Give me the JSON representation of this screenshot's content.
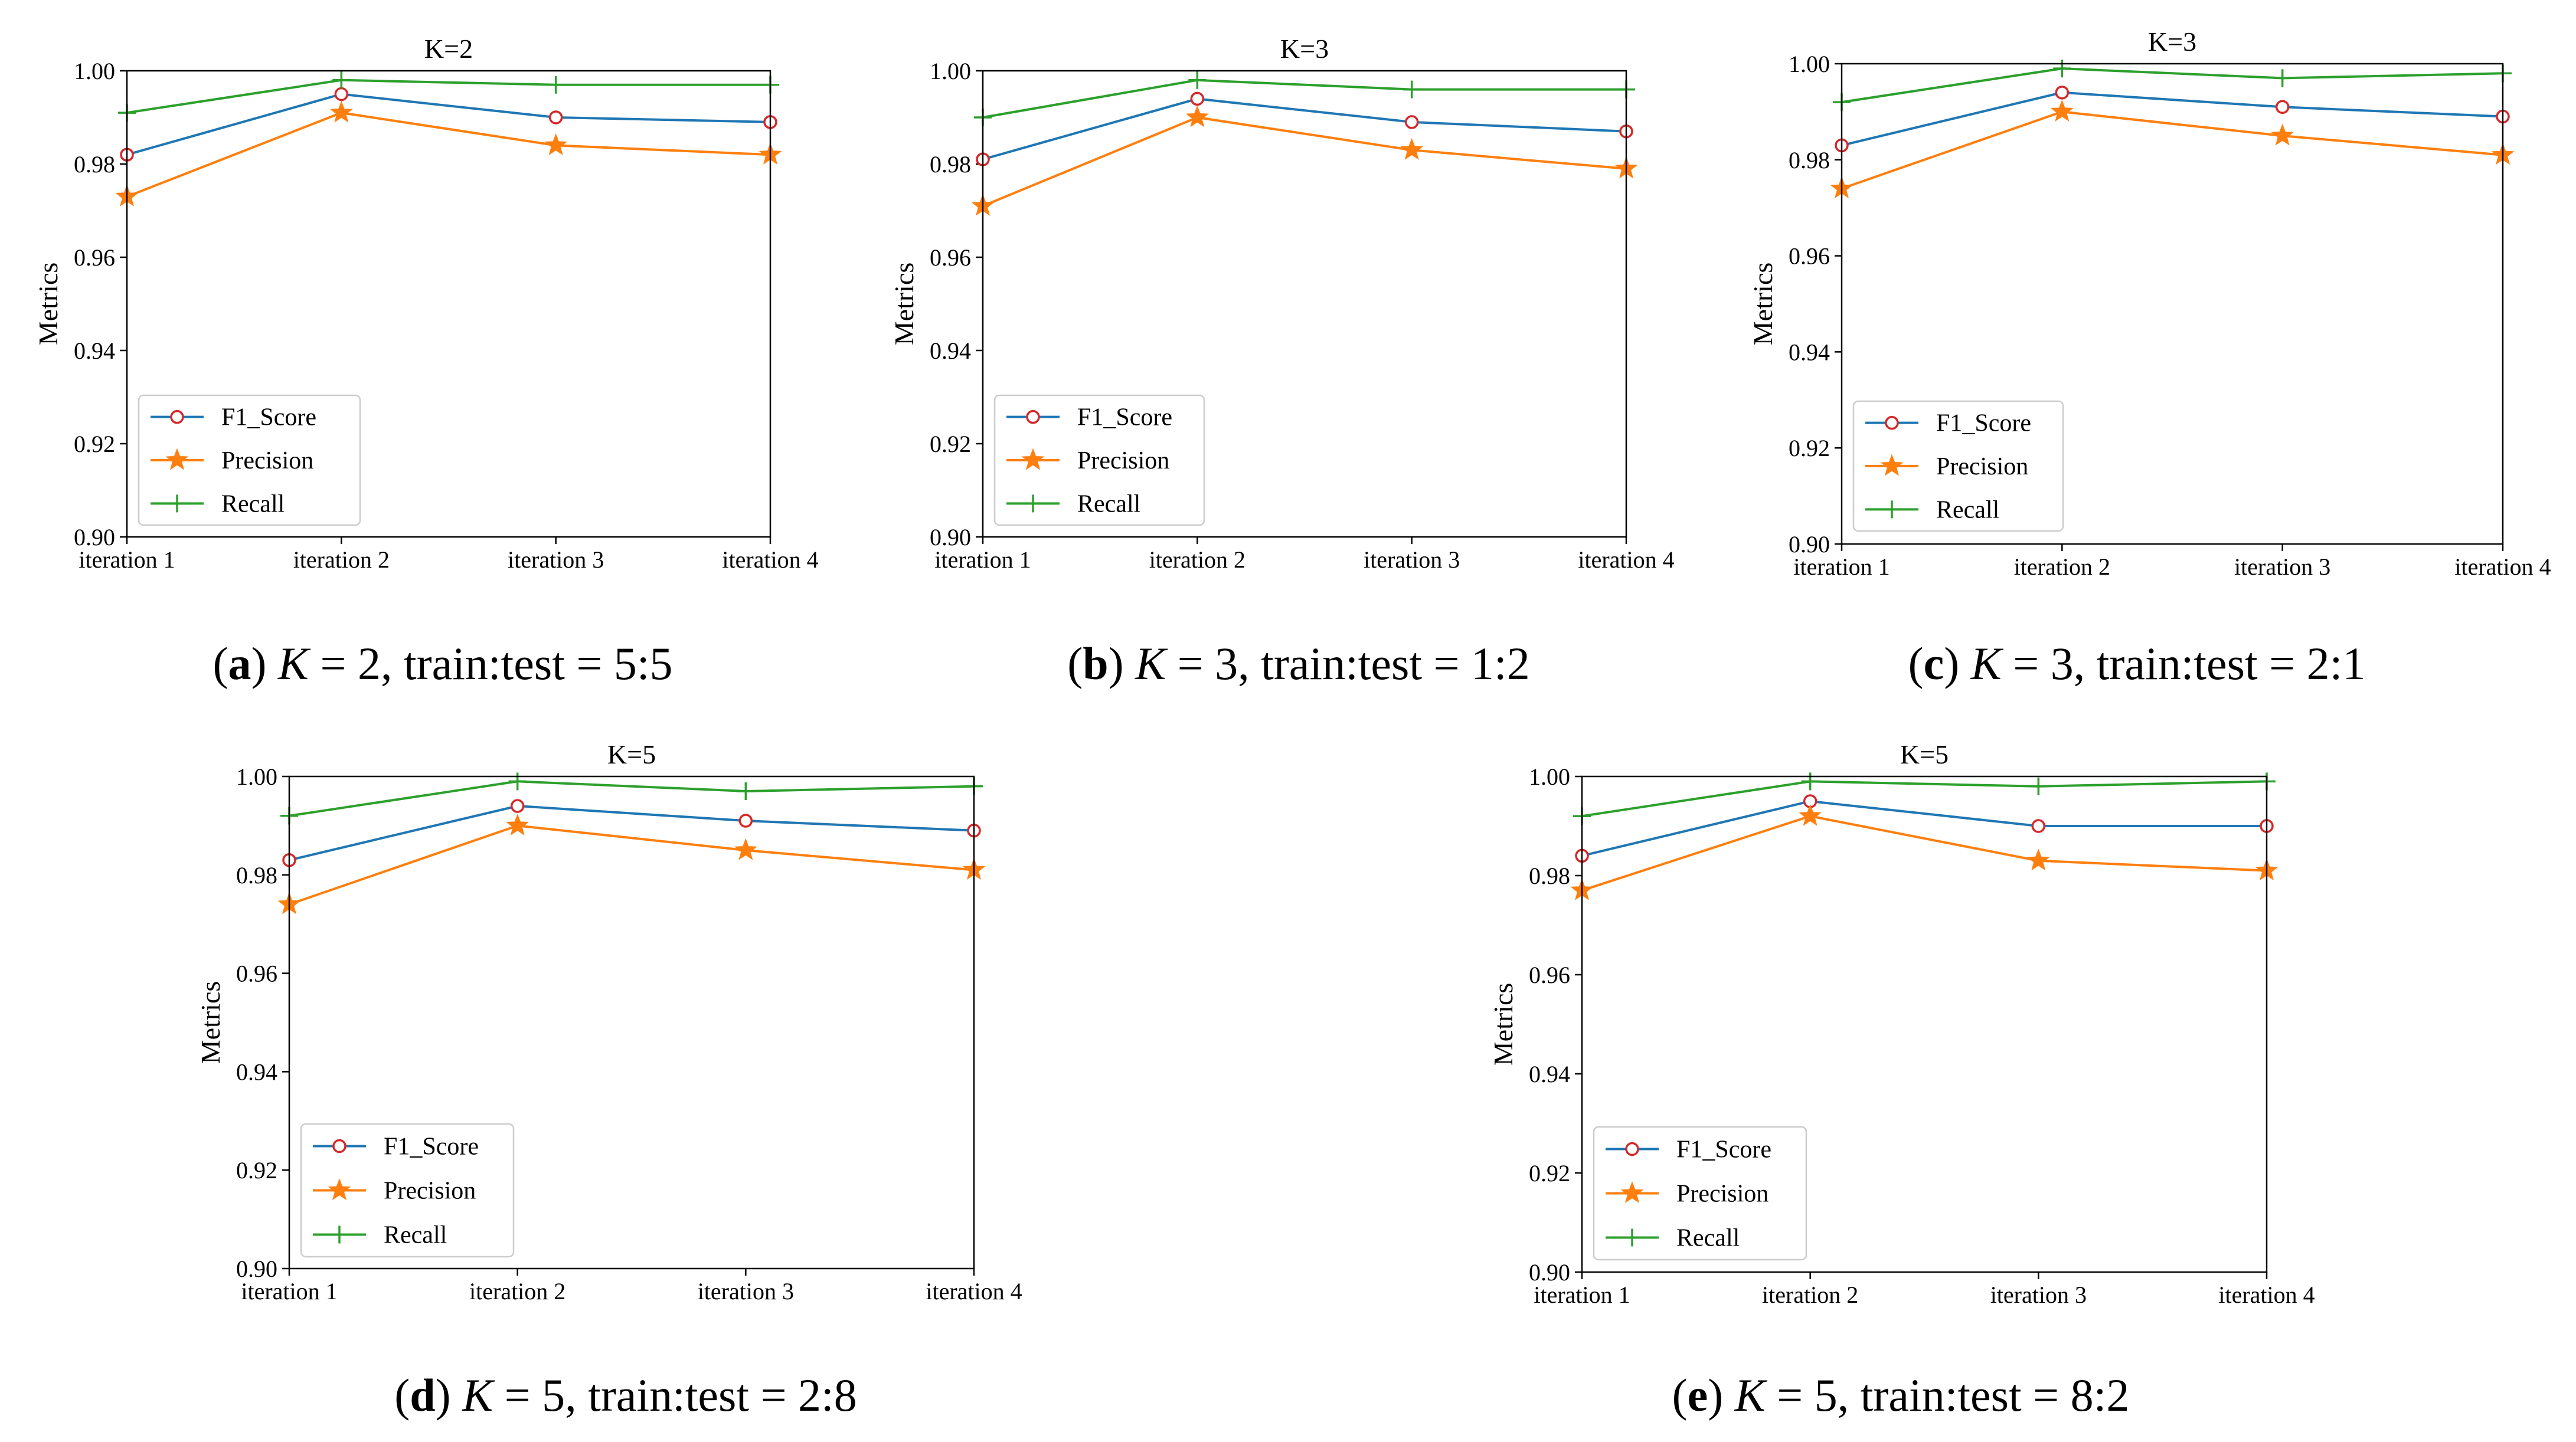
{
  "colors": {
    "f1": "#1f77b4",
    "precision": "#ff7f0e",
    "recall": "#2ca02c",
    "marker_f1": "#d62728"
  },
  "legend": [
    "F1_Score",
    "Precision",
    "Recall"
  ],
  "chart_data": [
    {
      "type": "line",
      "title": "K=2",
      "ylabel": "Metrics",
      "ylim": [
        0.9,
        1.0
      ],
      "yticks": [
        "0.90",
        "0.92",
        "0.94",
        "0.96",
        "0.98",
        "1.00"
      ],
      "categories": [
        "iteration 1",
        "iteration 2",
        "iteration 3",
        "iteration 4"
      ],
      "series": [
        {
          "name": "F1_Score",
          "values": [
            0.982,
            0.995,
            0.99,
            0.989
          ]
        },
        {
          "name": "Precision",
          "values": [
            0.973,
            0.991,
            0.984,
            0.982
          ]
        },
        {
          "name": "Recall",
          "values": [
            0.991,
            0.998,
            0.997,
            0.997
          ]
        }
      ],
      "caption": {
        "letter": "a",
        "k": "K",
        "rest": " = 2, train:test = 5:5"
      }
    },
    {
      "type": "line",
      "title": "K=3",
      "ylabel": "Metrics",
      "ylim": [
        0.9,
        1.0
      ],
      "yticks": [
        "0.90",
        "0.92",
        "0.94",
        "0.96",
        "0.98",
        "1.00"
      ],
      "categories": [
        "iteration 1",
        "iteration 2",
        "iteration 3",
        "iteration 4"
      ],
      "series": [
        {
          "name": "F1_Score",
          "values": [
            0.981,
            0.994,
            0.989,
            0.987
          ]
        },
        {
          "name": "Precision",
          "values": [
            0.971,
            0.99,
            0.983,
            0.979
          ]
        },
        {
          "name": "Recall",
          "values": [
            0.99,
            0.998,
            0.996,
            0.996
          ]
        }
      ],
      "caption": {
        "letter": "b",
        "k": "K",
        "rest": " = 3, train:test = 1:2"
      }
    },
    {
      "type": "line",
      "title": "K=3",
      "ylabel": "Metrics",
      "ylim": [
        0.9,
        1.0
      ],
      "yticks": [
        "0.90",
        "0.92",
        "0.94",
        "0.96",
        "0.98",
        "1.00"
      ],
      "categories": [
        "iteration 1",
        "iteration 2",
        "iteration 3",
        "iteration 4"
      ],
      "series": [
        {
          "name": "F1_Score",
          "values": [
            0.983,
            0.994,
            0.991,
            0.989
          ]
        },
        {
          "name": "Precision",
          "values": [
            0.974,
            0.99,
            0.985,
            0.981
          ]
        },
        {
          "name": "Recall",
          "values": [
            0.992,
            0.999,
            0.997,
            0.998
          ]
        }
      ],
      "caption": {
        "letter": "c",
        "k": "K",
        "rest": " = 3, train:test = 2:1"
      }
    },
    {
      "type": "line",
      "title": "K=5",
      "ylabel": "Metrics",
      "ylim": [
        0.9,
        1.0
      ],
      "yticks": [
        "0.90",
        "0.92",
        "0.94",
        "0.96",
        "0.98",
        "1.00"
      ],
      "categories": [
        "iteration 1",
        "iteration 2",
        "iteration 3",
        "iteration 4"
      ],
      "series": [
        {
          "name": "F1_Score",
          "values": [
            0.983,
            0.994,
            0.991,
            0.989
          ]
        },
        {
          "name": "Precision",
          "values": [
            0.974,
            0.99,
            0.985,
            0.981
          ]
        },
        {
          "name": "Recall",
          "values": [
            0.992,
            0.999,
            0.997,
            0.998
          ]
        }
      ],
      "caption": {
        "letter": "d",
        "k": "K",
        "rest": " = 5, train:test = 2:8"
      }
    },
    {
      "type": "line",
      "title": "K=5",
      "ylabel": "Metrics",
      "ylim": [
        0.9,
        1.0
      ],
      "yticks": [
        "0.90",
        "0.92",
        "0.94",
        "0.96",
        "0.98",
        "1.00"
      ],
      "categories": [
        "iteration 1",
        "iteration 2",
        "iteration 3",
        "iteration 4"
      ],
      "series": [
        {
          "name": "F1_Score",
          "values": [
            0.984,
            0.995,
            0.99,
            0.99
          ]
        },
        {
          "name": "Precision",
          "values": [
            0.977,
            0.992,
            0.983,
            0.981
          ]
        },
        {
          "name": "Recall",
          "values": [
            0.992,
            0.999,
            0.998,
            0.999
          ]
        }
      ],
      "caption": {
        "letter": "e",
        "k": "K",
        "rest": " = 5, train:test = 8:2"
      }
    }
  ]
}
